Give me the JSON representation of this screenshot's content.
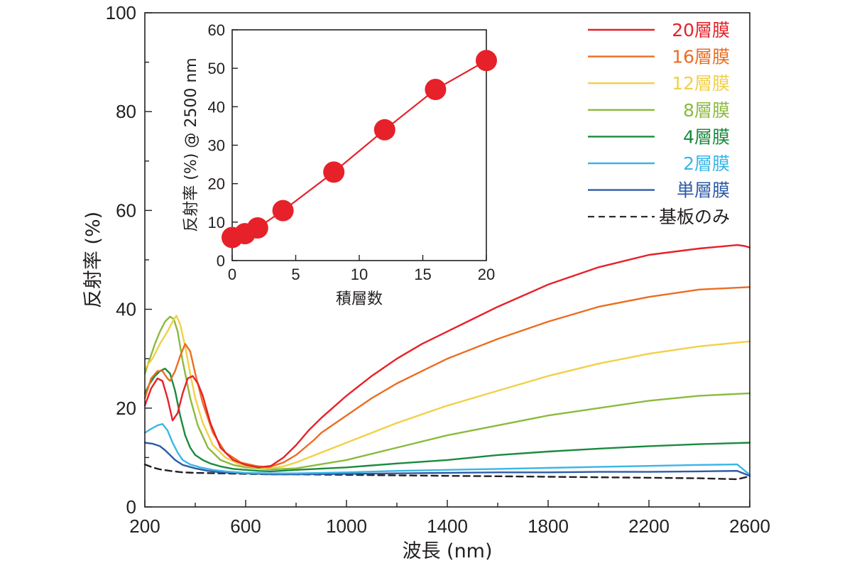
{
  "chart_data": [
    {
      "type": "line",
      "id": "main",
      "title": "",
      "xlabel": "波長 (nm)",
      "ylabel": "反射率 (%)",
      "xlim": [
        200,
        2600
      ],
      "ylim": [
        0,
        100
      ],
      "xticks": [
        200,
        600,
        1000,
        1400,
        1800,
        2200,
        2600
      ],
      "yticks": [
        0,
        20,
        40,
        60,
        80,
        100
      ],
      "legend_position": "top-right",
      "series": [
        {
          "name": "20層膜",
          "color": "#e62129",
          "dashed": false,
          "x": [
            200,
            225,
            250,
            270,
            290,
            310,
            330,
            350,
            370,
            390,
            410,
            430,
            460,
            500,
            550,
            600,
            650,
            700,
            750,
            800,
            850,
            900,
            1000,
            1100,
            1200,
            1300,
            1400,
            1500,
            1600,
            1800,
            2000,
            2200,
            2400,
            2550,
            2580,
            2600
          ],
          "y": [
            20.5,
            24,
            26,
            25.5,
            22,
            17.5,
            19,
            23,
            26,
            26.5,
            25,
            22.5,
            17,
            12,
            9.5,
            8.5,
            8,
            8.3,
            10,
            12.5,
            15.5,
            18,
            22.5,
            26.5,
            30,
            33,
            35.5,
            38,
            40.5,
            45,
            48.5,
            51,
            52.3,
            53,
            52.8,
            52.5
          ]
        },
        {
          "name": "16層膜",
          "color": "#ec6d21",
          "dashed": false,
          "x": [
            200,
            225,
            250,
            270,
            290,
            300,
            320,
            340,
            360,
            380,
            400,
            430,
            470,
            520,
            580,
            640,
            690,
            750,
            800,
            870,
            900,
            1000,
            1100,
            1200,
            1300,
            1400,
            1600,
            1800,
            2000,
            2200,
            2400,
            2600
          ],
          "y": [
            22,
            26,
            27.5,
            27.5,
            26,
            25.5,
            27.5,
            30.5,
            33,
            31.5,
            27,
            21,
            15,
            11,
            9,
            8.3,
            8,
            9,
            10.5,
            13.5,
            15,
            18.5,
            22,
            25,
            27.5,
            30,
            34,
            37.5,
            40.5,
            42.5,
            44,
            44.5
          ]
        },
        {
          "name": "12層膜",
          "color": "#f1d048",
          "dashed": false,
          "x": [
            200,
            230,
            260,
            290,
            310,
            325,
            340,
            360,
            380,
            400,
            430,
            470,
            520,
            580,
            640,
            690,
            750,
            800,
            900,
            1000,
            1200,
            1400,
            1600,
            1800,
            2000,
            2200,
            2400,
            2600
          ],
          "y": [
            28,
            30,
            33,
            35.5,
            37.5,
            38.7,
            37,
            32.5,
            27,
            22,
            17,
            12.5,
            10,
            8.5,
            8,
            7.8,
            8.2,
            9,
            11,
            13,
            17,
            20.5,
            23.5,
            26.5,
            29,
            31,
            32.5,
            33.5
          ]
        },
        {
          "name": "8層膜",
          "color": "#8cba3f",
          "dashed": false,
          "x": [
            200,
            220,
            240,
            260,
            280,
            300,
            315,
            330,
            350,
            380,
            410,
            450,
            500,
            550,
            600,
            650,
            700,
            800,
            1000,
            1200,
            1400,
            1600,
            1800,
            2000,
            2200,
            2400,
            2600
          ],
          "y": [
            27,
            30,
            33,
            35.5,
            37.5,
            38.5,
            38,
            35.5,
            29.5,
            22,
            16.5,
            12,
            9.5,
            8.5,
            8,
            7.8,
            7.6,
            7.8,
            9.5,
            12,
            14.5,
            16.5,
            18.5,
            20,
            21.5,
            22.5,
            23
          ]
        },
        {
          "name": "4層膜",
          "color": "#1b8a3e",
          "dashed": false,
          "x": [
            200,
            220,
            240,
            260,
            280,
            300,
            320,
            340,
            360,
            380,
            400,
            430,
            460,
            500,
            550,
            600,
            650,
            700,
            800,
            1000,
            1200,
            1400,
            1600,
            1800,
            2000,
            2200,
            2400,
            2600
          ],
          "y": [
            23,
            25,
            26.5,
            27.5,
            28,
            27,
            23.5,
            18.5,
            14.5,
            12,
            10.5,
            9.5,
            8.8,
            8.2,
            7.7,
            7.5,
            7.3,
            7.2,
            7.5,
            8,
            8.8,
            9.5,
            10.5,
            11.2,
            11.8,
            12.3,
            12.7,
            13
          ]
        },
        {
          "name": "2層膜",
          "color": "#3ab6e5",
          "dashed": false,
          "x": [
            200,
            225,
            250,
            270,
            290,
            310,
            330,
            350,
            380,
            420,
            470,
            520,
            600,
            700,
            800,
            1000,
            1200,
            1400,
            1600,
            1800,
            2000,
            2200,
            2400,
            2550,
            2600
          ],
          "y": [
            15,
            15.8,
            16.5,
            16.8,
            15.5,
            13,
            11,
            9.5,
            8.6,
            8,
            7.5,
            7.2,
            6.9,
            6.8,
            6.8,
            7,
            7.3,
            7.5,
            7.7,
            7.9,
            8.1,
            8.3,
            8.5,
            8.6,
            6.5
          ]
        },
        {
          "name": "単層膜",
          "color": "#2d5ba7",
          "dashed": false,
          "x": [
            200,
            230,
            260,
            280,
            300,
            320,
            350,
            400,
            450,
            500,
            600,
            700,
            800,
            1000,
            1200,
            1400,
            1600,
            1800,
            2000,
            2200,
            2400,
            2550,
            2600
          ],
          "y": [
            13,
            12.8,
            12.3,
            11.5,
            10.5,
            9.5,
            8.5,
            7.8,
            7.3,
            7,
            6.8,
            6.6,
            6.6,
            6.7,
            6.8,
            6.9,
            7,
            7,
            7.1,
            7.1,
            7.2,
            7.3,
            6.3
          ]
        },
        {
          "name": "基板のみ",
          "color": "#231f20",
          "dashed": true,
          "x": [
            200,
            230,
            260,
            300,
            350,
            400,
            500,
            600,
            700,
            800,
            1000,
            1200,
            1400,
            1600,
            1800,
            2000,
            2200,
            2400,
            2550,
            2600
          ],
          "y": [
            8.6,
            8,
            7.6,
            7.3,
            7,
            6.9,
            6.8,
            6.7,
            6.6,
            6.6,
            6.5,
            6.4,
            6.3,
            6.2,
            6.1,
            6,
            5.9,
            5.8,
            5.6,
            6.2
          ]
        }
      ]
    },
    {
      "type": "scatter",
      "id": "inset",
      "title": "",
      "xlabel": "積層数",
      "ylabel": "反射率 (%) @ 2500 nm",
      "xlim": [
        0,
        20
      ],
      "ylim": [
        0,
        60
      ],
      "xticks": [
        0,
        5,
        10,
        15,
        20
      ],
      "yticks": [
        0,
        10,
        20,
        30,
        40,
        50,
        60
      ],
      "color": "#e62129",
      "connected": true,
      "x": [
        0,
        1,
        2,
        4,
        8,
        12,
        16,
        20
      ],
      "y": [
        6,
        7,
        8.5,
        13,
        23,
        34,
        44.5,
        52
      ]
    }
  ]
}
